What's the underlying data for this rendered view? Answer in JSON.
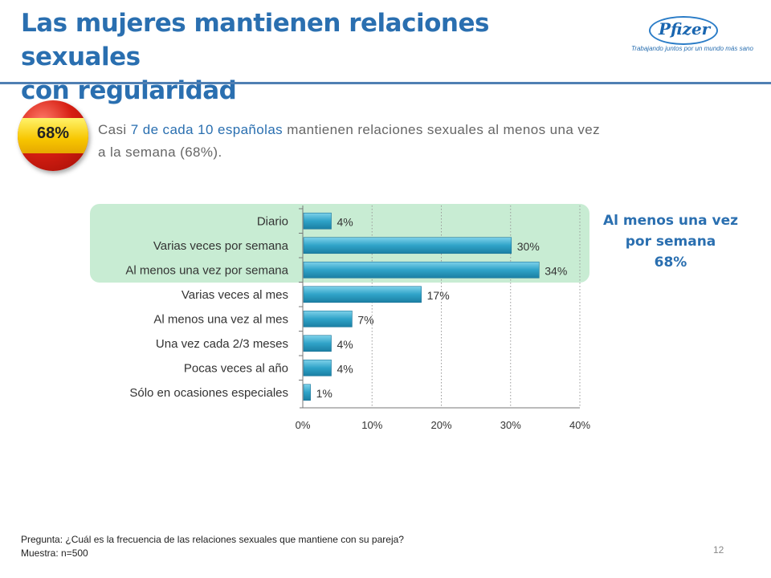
{
  "header": {
    "title_line1": "Las mujeres mantienen relaciones sexuales",
    "title_line2": "con regularidad"
  },
  "logo": {
    "brand": "Pfizer",
    "tagline": "Trabajando juntos por un mundo más sano"
  },
  "badge": {
    "value": "68%",
    "icon": "spain-flag-sphere"
  },
  "intro": {
    "part1": "Casi ",
    "highlight": "7 de cada 10 españolas",
    "part2": " mantienen relaciones sexuales al menos una vez",
    "line2": "a la semana (68%)."
  },
  "side_note": {
    "line1": "Al menos una vez",
    "line2": "por semana",
    "line3": "68%"
  },
  "chart_data": {
    "type": "bar",
    "orientation": "horizontal",
    "categories": [
      "Diario",
      "Varias veces por semana",
      "Al menos una vez por semana",
      "Varias veces al mes",
      "Al menos una vez al mes",
      "Una vez cada 2/3 meses",
      "Pocas veces al año",
      "Sólo en ocasiones especiales"
    ],
    "values": [
      4,
      30,
      34,
      17,
      7,
      4,
      4,
      1
    ],
    "value_labels": [
      "4%",
      "30%",
      "34%",
      "17%",
      "7%",
      "4%",
      "4%",
      "1%"
    ],
    "xlim": [
      0,
      40
    ],
    "xticks": [
      "0%",
      "10%",
      "20%",
      "30%",
      "40%"
    ],
    "grid": true,
    "bar_color": "#2fa3c8",
    "highlight_color": "#c8ecd3",
    "highlighted_categories": [
      "Diario",
      "Varias veces por semana",
      "Al menos una vez por semana"
    ]
  },
  "footer": {
    "question": "Pregunta: ¿Cuál es la frecuencia de las relaciones sexuales que mantiene con su pareja?",
    "sample": "Muestra: n=500"
  },
  "page_number": "12"
}
